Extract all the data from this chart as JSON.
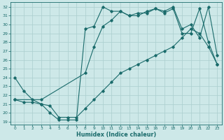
{
  "xlabel": "Humidex (Indice chaleur)",
  "bg_color": "#cde8e8",
  "line_color": "#1a6b6b",
  "grid_color": "#aacece",
  "xlim": [
    -0.5,
    23.5
  ],
  "ylim": [
    18.7,
    32.5
  ],
  "xticks": [
    0,
    1,
    2,
    3,
    4,
    5,
    6,
    7,
    8,
    9,
    10,
    11,
    12,
    13,
    14,
    15,
    16,
    17,
    18,
    19,
    20,
    21,
    22,
    23
  ],
  "yticks": [
    19,
    20,
    21,
    22,
    23,
    24,
    25,
    26,
    27,
    28,
    29,
    30,
    31,
    32
  ],
  "line1_x": [
    0,
    1,
    2,
    3,
    4,
    5,
    6,
    7,
    8,
    9,
    10,
    11,
    12,
    13,
    14,
    15,
    16,
    17,
    18,
    19,
    20,
    21,
    22,
    23
  ],
  "line1_y": [
    24,
    22.5,
    21.5,
    21,
    20,
    19.2,
    19.2,
    19.2,
    29.5,
    29.8,
    32,
    31.5,
    31.5,
    31,
    31.3,
    31.3,
    31.8,
    31.3,
    31.8,
    29.0,
    29.0,
    31.8,
    28.0,
    25.5
  ],
  "line2_x": [
    0,
    1,
    2,
    3,
    4,
    5,
    6,
    7,
    8,
    9,
    10,
    11,
    12,
    13,
    14,
    15,
    16,
    17,
    18,
    19,
    20,
    21,
    22,
    23
  ],
  "line2_y": [
    21.5,
    21.2,
    21.2,
    21.0,
    20.8,
    19.5,
    19.5,
    19.5,
    20.5,
    21.5,
    22.5,
    23.5,
    24.5,
    25.0,
    25.5,
    26.0,
    26.5,
    27.0,
    27.5,
    28.5,
    29.5,
    29.0,
    27.5,
    25.5
  ],
  "line3_x": [
    0,
    3,
    8,
    9,
    10,
    11,
    12,
    13,
    14,
    15,
    16,
    17,
    18,
    19,
    20,
    21,
    22,
    23
  ],
  "line3_y": [
    21.5,
    21.5,
    24.5,
    27.5,
    29.8,
    30.5,
    31.5,
    31.0,
    31.0,
    31.5,
    31.8,
    31.5,
    32.0,
    29.5,
    30.0,
    28.5,
    32.0,
    26.5
  ]
}
